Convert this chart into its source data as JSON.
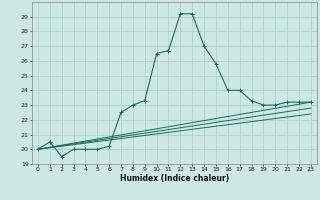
{
  "title": "",
  "xlabel": "Humidex (Indice chaleur)",
  "bg_color": "#cde8e2",
  "grid_color": "#aad4cc",
  "line_color": "#1a6b5a",
  "xlim": [
    -0.5,
    23.5
  ],
  "ylim": [
    19,
    30
  ],
  "xticks": [
    0,
    1,
    2,
    3,
    4,
    5,
    6,
    7,
    8,
    9,
    10,
    11,
    12,
    13,
    14,
    15,
    16,
    17,
    18,
    19,
    20,
    21,
    22,
    23
  ],
  "yticks": [
    19,
    20,
    21,
    22,
    23,
    24,
    25,
    26,
    27,
    28,
    29
  ],
  "main_x": [
    0,
    1,
    2,
    3,
    4,
    5,
    6,
    7,
    8,
    9,
    10,
    11,
    12,
    13,
    14,
    15,
    16,
    17,
    18,
    19,
    20,
    21,
    22,
    23
  ],
  "main_y": [
    20.0,
    20.5,
    19.5,
    20.0,
    20.0,
    20.0,
    20.2,
    22.5,
    23.0,
    23.3,
    26.5,
    26.7,
    29.2,
    29.2,
    27.0,
    25.8,
    24.0,
    24.0,
    23.3,
    23.0,
    23.0,
    23.2,
    23.2,
    23.2
  ],
  "line1_x": [
    0,
    23
  ],
  "line1_y": [
    20.0,
    23.2
  ],
  "line2_x": [
    0,
    23
  ],
  "line2_y": [
    20.0,
    22.8
  ],
  "line3_x": [
    0,
    23
  ],
  "line3_y": [
    20.0,
    22.4
  ]
}
